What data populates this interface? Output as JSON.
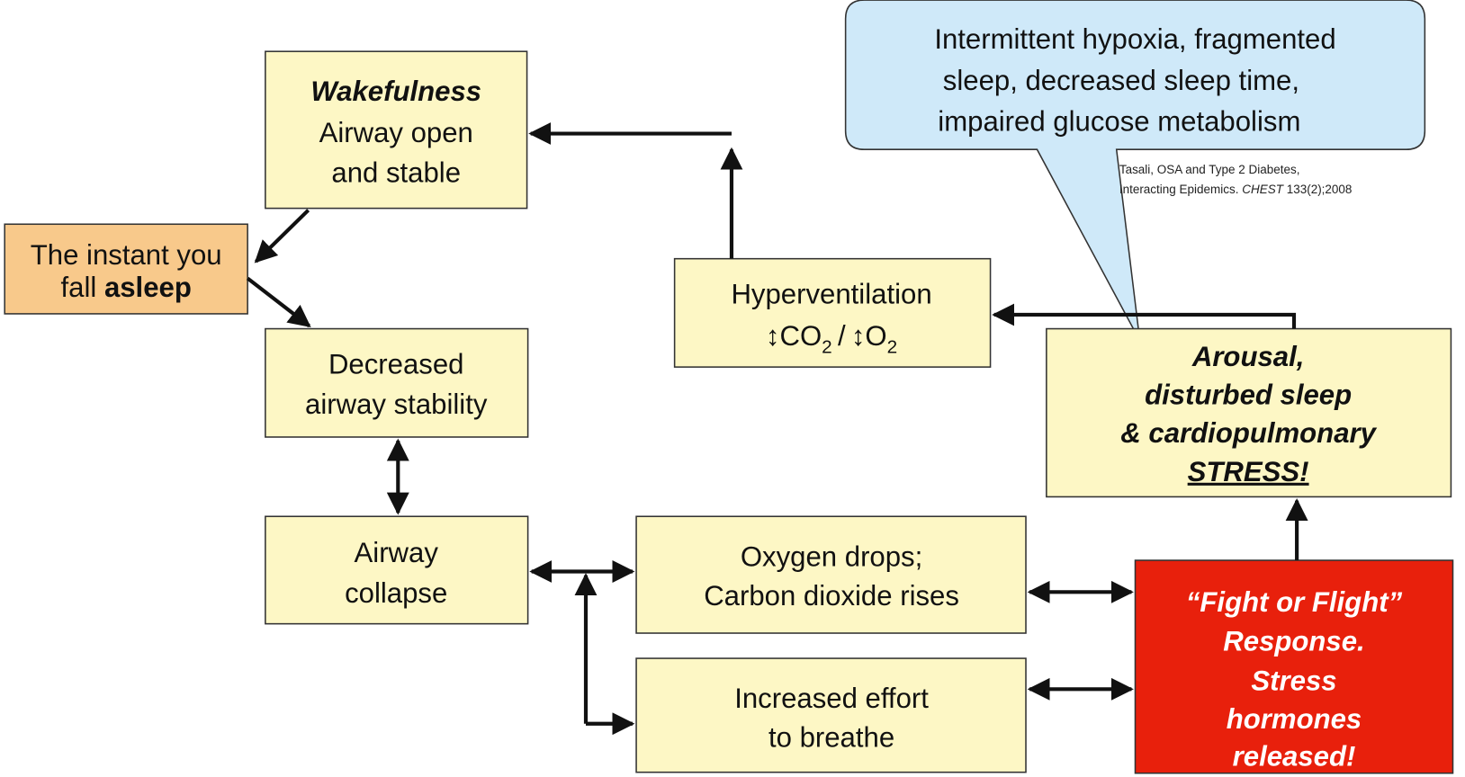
{
  "nodes": {
    "wakefulness": {
      "title": "Wakefulness",
      "lines": [
        "Airway open",
        "and stable"
      ]
    },
    "asleep": {
      "line1": "The instant you",
      "line2": [
        "fall",
        "asleep"
      ]
    },
    "decreased": {
      "lines": [
        "Decreased",
        "airway stability"
      ]
    },
    "collapse": {
      "lines": [
        "Airway",
        "collapse"
      ]
    },
    "hyperventilation": {
      "line1": "Hyperventilation",
      "line2": [
        "↕CO",
        "2",
        "/",
        "↕O",
        "2"
      ]
    },
    "oxygen": {
      "lines": [
        "Oxygen drops;",
        "Carbon dioxide rises"
      ]
    },
    "effort": {
      "lines": [
        "Increased effort",
        "to breathe"
      ]
    },
    "arousal": {
      "lines": [
        "Arousal,",
        "disturbed sleep",
        "& cardiopulmonary"
      ],
      "emphasis": "STRESS!"
    },
    "fight": {
      "lines": [
        "“Fight or Flight”",
        "Response.",
        "Stress",
        "hormones",
        "released!"
      ]
    }
  },
  "callout": {
    "lines": [
      "Intermittent hypoxia, fragmented",
      "sleep, decreased sleep time,",
      "impaired glucose metabolism"
    ]
  },
  "citation": {
    "line1": "Tasali, OSA and Type 2 Diabetes,",
    "line2": [
      "Interacting Epidemics.",
      "CHEST",
      "133(2);2008"
    ]
  }
}
